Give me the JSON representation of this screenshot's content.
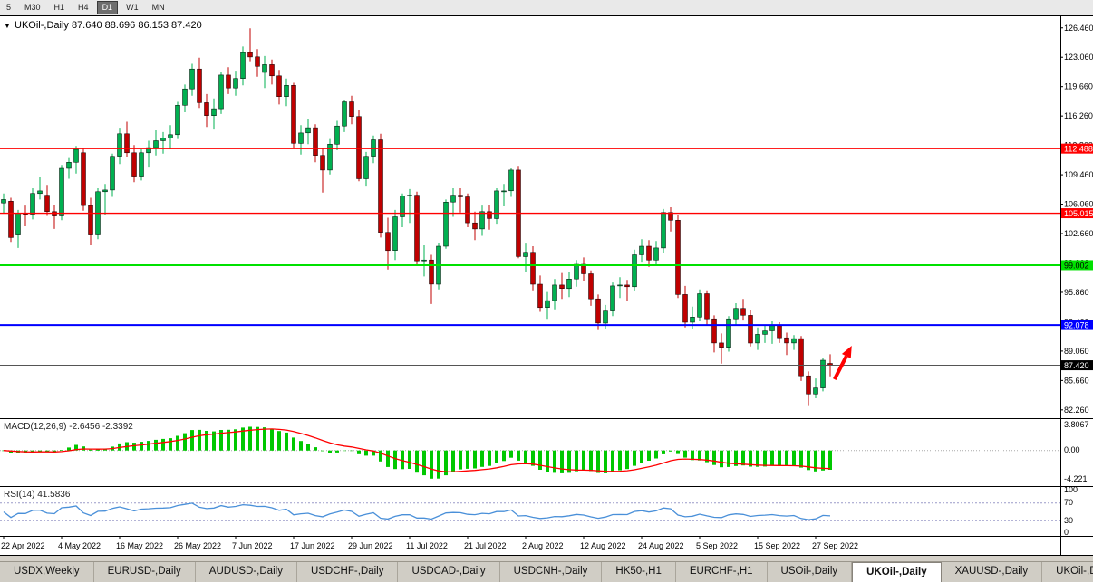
{
  "toolbar": {
    "timeframes": [
      {
        "label": "5",
        "active": false
      },
      {
        "label": "M30",
        "active": false
      },
      {
        "label": "H1",
        "active": false
      },
      {
        "label": "H4",
        "active": false
      },
      {
        "label": "D1",
        "active": true
      },
      {
        "label": "W1",
        "active": false
      },
      {
        "label": "MN",
        "active": false
      }
    ]
  },
  "chart_header": {
    "collapse_icon": "▼",
    "symbol_info": "UKOil-,Daily 87.640 88.696 86.153 87.420"
  },
  "chart_data": {
    "type": "candlestick",
    "symbol": "UKOil-,Daily",
    "timeframe": "Daily",
    "ohlc_current": {
      "open": "87.640",
      "high": "88.696",
      "low": "86.153",
      "close": "87.420"
    },
    "ylim": [
      81.3,
      127.9
    ],
    "price_axis_ticks": [
      "126.460",
      "123.060",
      "119.660",
      "116.260",
      "112.860",
      "109.460",
      "106.060",
      "102.660",
      "99.260",
      "95.860",
      "92.460",
      "89.060",
      "85.660",
      "82.260"
    ],
    "x_tick_labels": [
      "22 Apr 2022",
      "4 May 2022",
      "16 May 2022",
      "26 May 2022",
      "7 Jun 2022",
      "17 Jun 2022",
      "29 Jun 2022",
      "11 Jul 2022",
      "21 Jul 2022",
      "2 Aug 2022",
      "12 Aug 2022",
      "24 Aug 2022",
      "5 Sep 2022",
      "15 Sep 2022",
      "27 Sep 2022"
    ],
    "x_tick_step": 8,
    "candles_ohlc": [
      [
        106.2,
        107.3,
        105.0,
        106.6
      ],
      [
        106.4,
        106.8,
        101.7,
        102.2
      ],
      [
        102.5,
        105.4,
        101.0,
        105.0
      ],
      [
        105.0,
        105.9,
        103.5,
        104.9
      ],
      [
        104.9,
        107.9,
        104.3,
        107.3
      ],
      [
        107.3,
        109.2,
        106.6,
        107.6
      ],
      [
        107.1,
        108.3,
        104.7,
        105.2
      ],
      [
        105.2,
        106.0,
        103.2,
        104.7
      ],
      [
        104.7,
        110.6,
        104.2,
        110.2
      ],
      [
        110.2,
        111.4,
        109.0,
        110.9
      ],
      [
        110.9,
        112.8,
        109.6,
        112.4
      ],
      [
        112.0,
        112.5,
        105.3,
        105.9
      ],
      [
        105.9,
        106.8,
        101.3,
        102.5
      ],
      [
        102.5,
        107.9,
        102.0,
        107.5
      ],
      [
        107.5,
        108.4,
        104.8,
        107.7
      ],
      [
        107.7,
        111.9,
        106.9,
        111.6
      ],
      [
        111.6,
        114.9,
        110.7,
        114.2
      ],
      [
        114.2,
        115.6,
        111.5,
        112.0
      ],
      [
        112.0,
        112.9,
        108.6,
        109.3
      ],
      [
        109.3,
        112.4,
        108.8,
        112.0
      ],
      [
        112.0,
        113.4,
        110.3,
        112.6
      ],
      [
        112.6,
        114.6,
        111.7,
        113.4
      ],
      [
        113.4,
        114.4,
        111.9,
        113.7
      ],
      [
        113.7,
        115.2,
        112.4,
        114.1
      ],
      [
        114.1,
        117.9,
        113.6,
        117.5
      ],
      [
        117.5,
        119.9,
        116.7,
        119.4
      ],
      [
        119.4,
        122.3,
        118.6,
        121.7
      ],
      [
        121.7,
        123.0,
        117.2,
        117.8
      ],
      [
        117.8,
        118.8,
        115.0,
        116.3
      ],
      [
        116.3,
        118.3,
        114.7,
        117.1
      ],
      [
        117.1,
        121.3,
        116.5,
        121.0
      ],
      [
        121.0,
        121.9,
        118.8,
        119.5
      ],
      [
        119.5,
        121.5,
        118.6,
        120.6
      ],
      [
        120.6,
        124.3,
        119.8,
        123.6
      ],
      [
        123.6,
        126.4,
        122.6,
        123.1
      ],
      [
        123.1,
        124.0,
        120.8,
        122.0
      ],
      [
        121.3,
        123.2,
        119.5,
        122.2
      ],
      [
        122.2,
        122.8,
        119.9,
        120.9
      ],
      [
        120.9,
        121.6,
        117.6,
        118.5
      ],
      [
        118.5,
        120.6,
        117.4,
        119.8
      ],
      [
        119.8,
        120.1,
        112.6,
        113.1
      ],
      [
        113.1,
        115.2,
        111.8,
        114.3
      ],
      [
        114.3,
        115.9,
        113.0,
        114.9
      ],
      [
        114.9,
        115.3,
        110.9,
        111.7
      ],
      [
        111.7,
        112.5,
        107.4,
        110.0
      ],
      [
        110.0,
        113.6,
        109.5,
        113.0
      ],
      [
        113.0,
        115.7,
        112.3,
        115.1
      ],
      [
        115.1,
        118.1,
        114.4,
        117.9
      ],
      [
        117.9,
        118.6,
        115.3,
        116.2
      ],
      [
        116.2,
        116.9,
        108.7,
        109.0
      ],
      [
        109.0,
        112.1,
        108.1,
        111.6
      ],
      [
        111.6,
        114.0,
        110.8,
        113.5
      ],
      [
        113.5,
        114.2,
        102.2,
        102.8
      ],
      [
        102.8,
        104.5,
        98.5,
        100.7
      ],
      [
        100.7,
        105.4,
        99.6,
        104.6
      ],
      [
        104.6,
        107.3,
        103.4,
        107.0
      ],
      [
        107.0,
        107.8,
        103.9,
        107.1
      ],
      [
        107.1,
        107.5,
        99.0,
        99.5
      ],
      [
        99.5,
        101.3,
        97.7,
        99.6
      ],
      [
        99.6,
        100.2,
        94.5,
        96.8
      ],
      [
        96.8,
        101.6,
        96.2,
        101.2
      ],
      [
        101.2,
        106.6,
        100.9,
        106.3
      ],
      [
        106.3,
        107.9,
        104.6,
        107.1
      ],
      [
        107.1,
        107.9,
        105.1,
        106.9
      ],
      [
        106.9,
        107.3,
        103.4,
        103.9
      ],
      [
        103.9,
        105.2,
        101.9,
        103.2
      ],
      [
        103.2,
        105.9,
        102.4,
        105.2
      ],
      [
        105.2,
        106.0,
        103.1,
        104.4
      ],
      [
        104.4,
        107.9,
        103.7,
        107.6
      ],
      [
        107.6,
        108.4,
        105.8,
        107.6
      ],
      [
        107.6,
        110.2,
        106.9,
        110.0
      ],
      [
        110.0,
        110.5,
        99.8,
        100.0
      ],
      [
        100.0,
        101.5,
        98.2,
        100.5
      ],
      [
        100.5,
        101.2,
        96.1,
        96.8
      ],
      [
        96.8,
        97.8,
        93.6,
        94.1
      ],
      [
        94.1,
        95.9,
        92.8,
        94.9
      ],
      [
        94.9,
        97.4,
        93.9,
        96.7
      ],
      [
        96.7,
        98.1,
        95.1,
        96.3
      ],
      [
        96.3,
        98.2,
        95.3,
        97.4
      ],
      [
        97.4,
        99.6,
        96.5,
        99.1
      ],
      [
        99.1,
        99.9,
        97.2,
        98.0
      ],
      [
        98.0,
        98.4,
        94.3,
        95.1
      ],
      [
        95.1,
        95.6,
        91.5,
        92.3
      ],
      [
        92.3,
        94.4,
        91.6,
        93.7
      ],
      [
        93.7,
        97.0,
        93.1,
        96.6
      ],
      [
        96.6,
        97.6,
        95.2,
        96.7
      ],
      [
        96.7,
        97.3,
        94.9,
        96.5
      ],
      [
        96.5,
        100.8,
        96.0,
        100.2
      ],
      [
        100.2,
        102.0,
        99.3,
        101.2
      ],
      [
        101.2,
        101.9,
        98.8,
        99.6
      ],
      [
        99.6,
        101.8,
        98.9,
        101.0
      ],
      [
        101.0,
        105.5,
        100.4,
        105.1
      ],
      [
        105.1,
        105.7,
        102.9,
        104.2
      ],
      [
        104.2,
        104.8,
        95.2,
        95.6
      ],
      [
        95.6,
        96.6,
        91.8,
        92.4
      ],
      [
        92.4,
        94.2,
        91.6,
        93.0
      ],
      [
        93.0,
        96.2,
        92.5,
        95.7
      ],
      [
        95.7,
        96.1,
        92.1,
        92.8
      ],
      [
        92.8,
        93.2,
        88.9,
        90.0
      ],
      [
        90.0,
        91.1,
        87.6,
        89.5
      ],
      [
        89.5,
        93.1,
        89.0,
        92.8
      ],
      [
        92.8,
        94.6,
        92.0,
        94.0
      ],
      [
        94.0,
        95.1,
        92.6,
        93.2
      ],
      [
        93.2,
        93.8,
        89.6,
        90.0
      ],
      [
        90.0,
        91.8,
        89.2,
        91.0
      ],
      [
        91.0,
        92.0,
        90.0,
        91.4
      ],
      [
        91.4,
        92.5,
        89.9,
        92.0
      ],
      [
        92.0,
        92.4,
        90.0,
        90.6
      ],
      [
        90.6,
        91.2,
        88.6,
        90.0
      ],
      [
        90.0,
        90.9,
        89.2,
        90.5
      ],
      [
        90.5,
        90.8,
        85.6,
        86.2
      ],
      [
        86.2,
        86.7,
        82.7,
        84.1
      ],
      [
        84.1,
        85.9,
        83.6,
        84.8
      ],
      [
        84.8,
        88.3,
        84.4,
        88.0
      ],
      [
        87.64,
        88.696,
        86.153,
        87.42
      ]
    ],
    "hlines": [
      {
        "label": "112.488",
        "value": 112.488,
        "color": "#ff0000",
        "text_color": "#ffffff",
        "width": 1.4,
        "current": false
      },
      {
        "label": "105.015",
        "value": 105.015,
        "color": "#ff0000",
        "text_color": "#ffffff",
        "width": 1.4,
        "current": false
      },
      {
        "label": "99.002",
        "value": 99.002,
        "color": "#00e100",
        "text_color": "#000000",
        "width": 2,
        "current": false
      },
      {
        "label": "92.078",
        "value": 92.078,
        "color": "#0000ff",
        "text_color": "#ffffff",
        "width": 2,
        "current": false
      },
      {
        "label": "87.420",
        "value": 87.42,
        "color": "#555555",
        "text_color": "#ffffff",
        "width": 1,
        "current": true
      }
    ],
    "annotations": [
      {
        "type": "up-arrow",
        "color": "#ff0000",
        "x_index": 116.8,
        "x_index_from": 114.6,
        "price_from": 85.8,
        "price_to": 89.4
      }
    ],
    "indicators": {
      "macd": {
        "label": "MACD(12,26,9) -2.6456 -2.3392",
        "axis_ticks": [
          "3.8067",
          "0.00",
          "-4.221"
        ],
        "histogram_color": "#00c800",
        "signal_color": "#ff0000",
        "range": [
          -5.2,
          4.6
        ]
      },
      "rsi": {
        "label": "RSI(14) 41.5836",
        "axis_ticks": [
          "100",
          "70",
          "30",
          "0"
        ],
        "levels": [
          70,
          30
        ],
        "line_color": "#4a90d9"
      }
    },
    "colors": {
      "up": "#00b050",
      "down": "#c00000",
      "background": "#ffffff",
      "axis_text": "#000000"
    }
  },
  "tabs": {
    "items": [
      {
        "label": "USDX,Weekly",
        "active": false
      },
      {
        "label": "EURUSD-,Daily",
        "active": false
      },
      {
        "label": "AUDUSD-,Daily",
        "active": false
      },
      {
        "label": "USDCHF-,Daily",
        "active": false
      },
      {
        "label": "USDCAD-,Daily",
        "active": false
      },
      {
        "label": "USDCNH-,Daily",
        "active": false
      },
      {
        "label": "HK50-,H1",
        "active": false
      },
      {
        "label": "EURCHF-,H1",
        "active": false
      },
      {
        "label": "USOil-,Daily",
        "active": false
      },
      {
        "label": "UKOil-,Daily",
        "active": true
      },
      {
        "label": "XAUUSD-,Daily",
        "active": false
      },
      {
        "label": "UKOil-,Daily",
        "active": false
      }
    ]
  }
}
